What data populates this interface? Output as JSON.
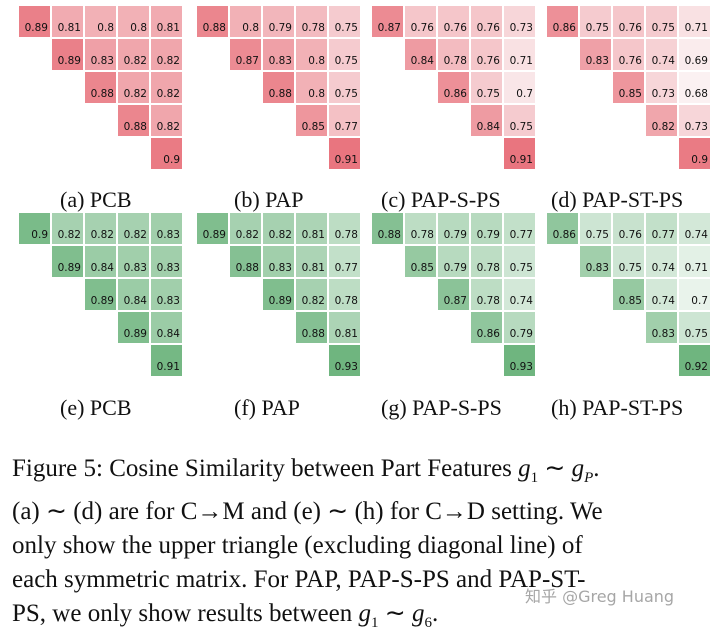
{
  "chart_data": [
    {
      "type": "heatmap",
      "label": "(a) PCB",
      "setting": "C→M",
      "color": "red",
      "rows": [
        [
          0.89,
          0.81,
          0.8,
          0.8,
          0.81
        ],
        [
          null,
          0.89,
          0.83,
          0.82,
          0.82
        ],
        [
          null,
          null,
          0.88,
          0.82,
          0.82
        ],
        [
          null,
          null,
          null,
          0.88,
          0.82
        ],
        [
          null,
          null,
          null,
          null,
          0.9
        ]
      ]
    },
    {
      "type": "heatmap",
      "label": "(b) PAP",
      "setting": "C→M",
      "color": "red",
      "rows": [
        [
          0.88,
          0.8,
          0.79,
          0.78,
          0.75
        ],
        [
          null,
          0.87,
          0.83,
          0.8,
          0.75
        ],
        [
          null,
          null,
          0.88,
          0.8,
          0.75
        ],
        [
          null,
          null,
          null,
          0.85,
          0.77
        ],
        [
          null,
          null,
          null,
          null,
          0.91
        ]
      ]
    },
    {
      "type": "heatmap",
      "label": "(c) PAP-S-PS",
      "setting": "C→M",
      "color": "red",
      "rows": [
        [
          0.87,
          0.76,
          0.76,
          0.76,
          0.73
        ],
        [
          null,
          0.84,
          0.78,
          0.76,
          0.71
        ],
        [
          null,
          null,
          0.86,
          0.75,
          0.7
        ],
        [
          null,
          null,
          null,
          0.84,
          0.75
        ],
        [
          null,
          null,
          null,
          null,
          0.91
        ]
      ]
    },
    {
      "type": "heatmap",
      "label": "(d) PAP-ST-PS",
      "setting": "C→M",
      "color": "red",
      "rows": [
        [
          0.86,
          0.75,
          0.76,
          0.75,
          0.71
        ],
        [
          null,
          0.83,
          0.76,
          0.74,
          0.69
        ],
        [
          null,
          null,
          0.85,
          0.73,
          0.68
        ],
        [
          null,
          null,
          null,
          0.82,
          0.73
        ],
        [
          null,
          null,
          null,
          null,
          0.9
        ]
      ]
    },
    {
      "type": "heatmap",
      "label": "(e) PCB",
      "setting": "C→D",
      "color": "green",
      "rows": [
        [
          0.9,
          0.82,
          0.82,
          0.82,
          0.83
        ],
        [
          null,
          0.89,
          0.84,
          0.83,
          0.83
        ],
        [
          null,
          null,
          0.89,
          0.84,
          0.83
        ],
        [
          null,
          null,
          null,
          0.89,
          0.84
        ],
        [
          null,
          null,
          null,
          null,
          0.91
        ]
      ]
    },
    {
      "type": "heatmap",
      "label": "(f) PAP",
      "setting": "C→D",
      "color": "green",
      "rows": [
        [
          0.89,
          0.82,
          0.82,
          0.81,
          0.78
        ],
        [
          null,
          0.88,
          0.83,
          0.81,
          0.77
        ],
        [
          null,
          null,
          0.89,
          0.82,
          0.78
        ],
        [
          null,
          null,
          null,
          0.88,
          0.81
        ],
        [
          null,
          null,
          null,
          null,
          0.93
        ]
      ]
    },
    {
      "type": "heatmap",
      "label": "(g) PAP-S-PS",
      "setting": "C→D",
      "color": "green",
      "rows": [
        [
          0.88,
          0.78,
          0.79,
          0.79,
          0.77
        ],
        [
          null,
          0.85,
          0.79,
          0.78,
          0.75
        ],
        [
          null,
          null,
          0.87,
          0.78,
          0.74
        ],
        [
          null,
          null,
          null,
          0.86,
          0.79
        ],
        [
          null,
          null,
          null,
          null,
          0.93
        ]
      ]
    },
    {
      "type": "heatmap",
      "label": "(h) PAP-ST-PS",
      "setting": "C→D",
      "color": "green",
      "rows": [
        [
          0.86,
          0.75,
          0.76,
          0.77,
          0.74
        ],
        [
          null,
          0.83,
          0.75,
          0.74,
          0.71
        ],
        [
          null,
          null,
          0.85,
          0.74,
          0.7
        ],
        [
          null,
          null,
          null,
          0.83,
          0.75
        ],
        [
          null,
          null,
          null,
          null,
          0.92
        ]
      ]
    }
  ],
  "colors": {
    "red_high": "#e8707a",
    "red_low": "#fbf1f2",
    "green_high": "#6fb57f",
    "green_low": "#f4f9f5"
  },
  "caption": {
    "line1_prefix": "Figure 5: Cosine Similarity between Part Features ",
    "line2": "(a) ∼ (d) are for C→M and (e) ∼ (h) for C→D setting. We",
    "line3": "only show the upper triangle (excluding diagonal line) of",
    "line4": "each symmetric matrix.  For PAP, PAP-S-PS and PAP-ST-",
    "line5_prefix": "PS, we only show results between "
  },
  "watermark": "知乎 @Greg Huang"
}
